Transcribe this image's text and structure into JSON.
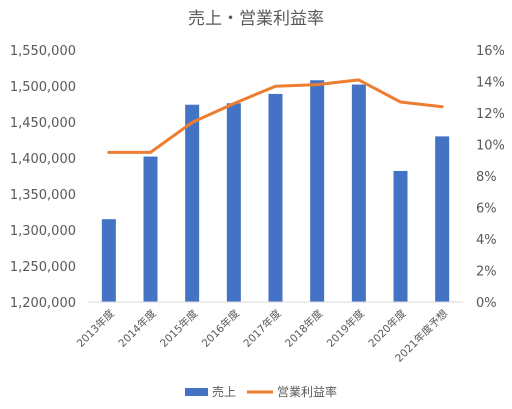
{
  "chart_data": {
    "type": "bar",
    "title": "売上・営業利益率",
    "categories": [
      "2013年度",
      "2014年度",
      "2015年度",
      "2016年度",
      "2017年度",
      "2018年度",
      "2019年度",
      "2020年度",
      "2021年度予想"
    ],
    "series": [
      {
        "name": "売上",
        "type": "bar",
        "axis": "left",
        "color": "#4472C4",
        "values": [
          1315000,
          1402000,
          1474000,
          1476000,
          1489000,
          1508000,
          1502000,
          1382000,
          1430000
        ]
      },
      {
        "name": "営業利益率",
        "type": "line",
        "axis": "right",
        "color": "#ED7D31",
        "values": [
          9.5,
          9.5,
          11.4,
          12.6,
          13.7,
          13.8,
          14.1,
          12.7,
          12.4
        ]
      }
    ],
    "y_left": {
      "min": 1200000,
      "max": 1550000,
      "step": 50000,
      "tick_labels": [
        "1,200,000",
        "1,250,000",
        "1,300,000",
        "1,350,000",
        "1,400,000",
        "1,450,000",
        "1,500,000",
        "1,550,000"
      ]
    },
    "y_right": {
      "min": 0,
      "max": 16,
      "step": 2,
      "tick_labels": [
        "0%",
        "2%",
        "4%",
        "6%",
        "8%",
        "10%",
        "12%",
        "14%",
        "16%"
      ]
    },
    "grid": false,
    "legend": "bottom"
  }
}
